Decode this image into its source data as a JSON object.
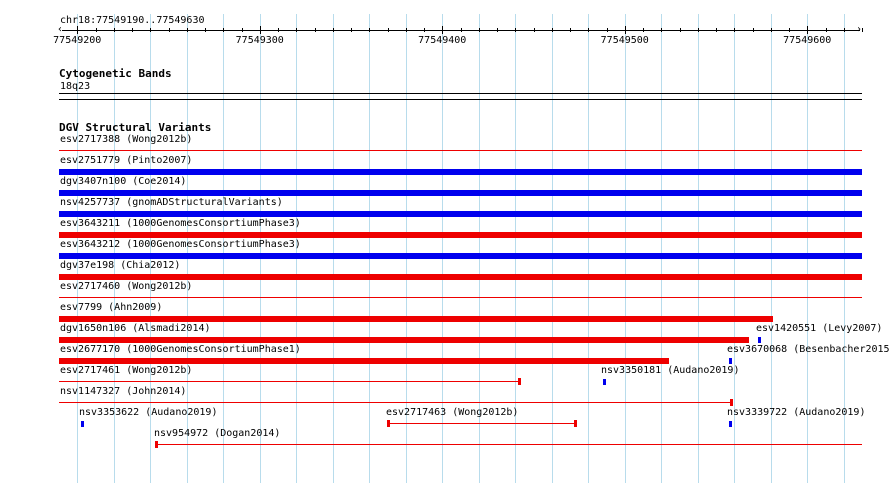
{
  "location": "chr18:77549190..77549630",
  "ruler": {
    "ticks": [
      {
        "value": 77549200,
        "label": "77549200"
      },
      {
        "value": 77549300,
        "label": "77549300"
      },
      {
        "value": 77549400,
        "label": "77549400"
      },
      {
        "value": 77549500,
        "label": "77549500"
      },
      {
        "value": 77549600,
        "label": "77549600"
      }
    ]
  },
  "cytobands": {
    "title": "Cytogenetic Bands",
    "band": "18q23"
  },
  "dgv": {
    "title": "DGV Structural Variants",
    "colors": {
      "blue": "#0000ee",
      "red": "#ee0000"
    },
    "features": [
      {
        "id": "f01",
        "label": "esv2717388 (Wong2012b)",
        "color": "red",
        "style": "thin",
        "start": 77549190,
        "end": 77549630,
        "row": 0
      },
      {
        "id": "f02",
        "label": "esv2751779 (Pinto2007)",
        "color": "blue",
        "style": "thick",
        "start": 77549190,
        "end": 77549630,
        "row": 1
      },
      {
        "id": "f03",
        "label": "dgv3407n100 (Coe2014)",
        "color": "blue",
        "style": "thick",
        "start": 77549190,
        "end": 77549630,
        "row": 2
      },
      {
        "id": "f04",
        "label": "nsv4257737 (gnomADStructuralVariants)",
        "color": "blue",
        "style": "thick",
        "start": 77549190,
        "end": 77549630,
        "row": 3
      },
      {
        "id": "f05",
        "label": "esv3643211 (1000GenomesConsortiumPhase3)",
        "color": "red",
        "style": "thick",
        "start": 77549190,
        "end": 77549630,
        "row": 4
      },
      {
        "id": "f06",
        "label": "esv3643212 (1000GenomesConsortiumPhase3)",
        "color": "blue",
        "style": "thick",
        "start": 77549190,
        "end": 77549630,
        "row": 5
      },
      {
        "id": "f07",
        "label": "dgv37e198 (Chia2012)",
        "color": "red",
        "style": "thick",
        "start": 77549190,
        "end": 77549630,
        "row": 6
      },
      {
        "id": "f08",
        "label": "esv2717460 (Wong2012b)",
        "color": "red",
        "style": "thin",
        "start": 77549190,
        "end": 77549630,
        "row": 7
      },
      {
        "id": "f09",
        "label": "esv7799 (Ahn2009)",
        "color": "red",
        "style": "thick",
        "start": 77549190,
        "end": 77549581,
        "row": 8
      },
      {
        "id": "f10",
        "label": "dgv1650n106 (Alsmadi2014)",
        "color": "red",
        "style": "thick",
        "start": 77549190,
        "end": 77549568,
        "row": 9
      },
      {
        "id": "f11",
        "label": "esv1420551 (Levy2007)",
        "color": "blue",
        "style": "point",
        "start": 77549573,
        "end": 77549574,
        "row": 9
      },
      {
        "id": "f12",
        "label": "esv2677170 (1000GenomesConsortiumPhase1)",
        "color": "red",
        "style": "thick",
        "start": 77549190,
        "end": 77549524,
        "row": 10
      },
      {
        "id": "f13",
        "label": "esv3670068 (Besenbacher2015)",
        "color": "blue",
        "style": "point",
        "start": 77549557,
        "end": 77549558,
        "row": 10
      },
      {
        "id": "f14",
        "label": "esv2717461 (Wong2012b)",
        "color": "red",
        "style": "thin",
        "start": 77549190,
        "end": 77549442,
        "row": 11
      },
      {
        "id": "f15",
        "label": "nsv3350181 (Audano2019)",
        "color": "blue",
        "style": "point",
        "start": 77549488,
        "end": 77549489,
        "row": 11
      },
      {
        "id": "f16",
        "label": "nsv1147327 (John2014)",
        "color": "red",
        "style": "thin",
        "start": 77549190,
        "end": 77549558,
        "row": 12
      },
      {
        "id": "f17",
        "label": "nsv3353622 (Audano2019)",
        "color": "blue",
        "style": "point",
        "start": 77549202,
        "end": 77549203,
        "row": 13
      },
      {
        "id": "f18",
        "label": "esv2717463 (Wong2012b)",
        "color": "red",
        "style": "thin",
        "start": 77549370,
        "end": 77549473,
        "row": 13
      },
      {
        "id": "f19",
        "label": "nsv3339722 (Audano2019)",
        "color": "blue",
        "style": "point",
        "start": 77549557,
        "end": 77549558,
        "row": 13
      },
      {
        "id": "f20",
        "label": "nsv954972 (Dogan2014)",
        "color": "red",
        "style": "thin",
        "start": 77549243,
        "end": 77549630,
        "row": 14
      }
    ]
  }
}
